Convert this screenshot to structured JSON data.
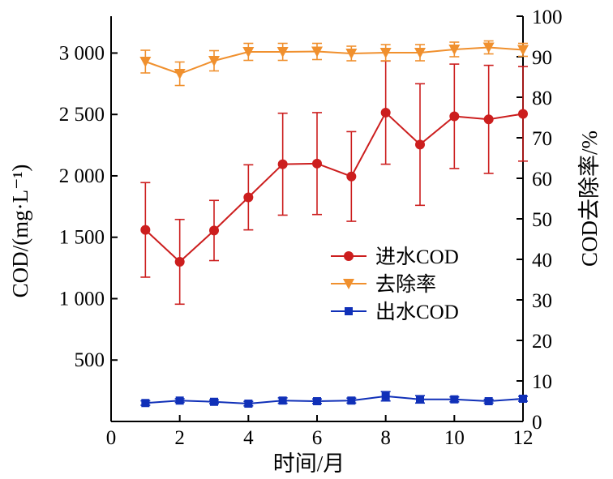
{
  "chart_data": {
    "type": "line",
    "x": [
      1,
      2,
      3,
      4,
      5,
      6,
      7,
      8,
      9,
      10,
      11,
      12
    ],
    "xlabel": "时间/月",
    "xlim": [
      0,
      12
    ],
    "xticks": [
      0,
      2,
      4,
      6,
      8,
      10,
      12
    ],
    "xtick_labels": [
      "0",
      "2",
      "4",
      "6",
      "8",
      "10",
      "12"
    ],
    "left_axis": {
      "label": "COD/(mg·L⁻¹)",
      "ylim": [
        0,
        3300
      ],
      "ticks": [
        500,
        1000,
        1500,
        2000,
        2500,
        3000
      ],
      "tick_labels": [
        "500",
        "1 000",
        "1 500",
        "2 000",
        "2 500",
        "3 000"
      ]
    },
    "right_axis": {
      "label": "COD去除率/%",
      "ylim": [
        0,
        100
      ],
      "ticks": [
        0,
        10,
        20,
        30,
        40,
        50,
        60,
        70,
        80,
        90,
        100
      ],
      "tick_labels": [
        "0",
        "10",
        "20",
        "30",
        "40",
        "50",
        "60",
        "70",
        "80",
        "90",
        "100"
      ]
    },
    "series": [
      {
        "name": "进水COD",
        "axis": "left",
        "color": "#cc1e1e",
        "marker": "circle",
        "values": [
          1560,
          1300,
          1555,
          1825,
          2095,
          2100,
          1995,
          2515,
          2255,
          2485,
          2460,
          2505
        ],
        "errors": [
          385,
          345,
          245,
          265,
          415,
          415,
          365,
          420,
          495,
          425,
          440,
          385
        ]
      },
      {
        "name": "去除率",
        "axis": "right",
        "color": "#f0902e",
        "marker": "triangle-down",
        "values": [
          88.8,
          85.8,
          89.0,
          91.2,
          91.2,
          91.3,
          90.8,
          91.0,
          91.0,
          91.8,
          92.3,
          91.7
        ],
        "errors": [
          2.8,
          2.9,
          2.5,
          2.1,
          2.1,
          2.0,
          1.8,
          2.0,
          2.0,
          1.8,
          1.6,
          1.6
        ]
      },
      {
        "name": "出水COD",
        "axis": "left",
        "color": "#1030b8",
        "marker": "square",
        "values": [
          150,
          170,
          160,
          145,
          170,
          165,
          170,
          205,
          180,
          180,
          165,
          185
        ],
        "errors": [
          18,
          15,
          15,
          18,
          22,
          18,
          20,
          38,
          30,
          20,
          15,
          20
        ]
      }
    ],
    "legend": {
      "position": "center-right",
      "entries": [
        "进水COD",
        "去除率",
        "出水COD"
      ]
    },
    "grid": false
  }
}
